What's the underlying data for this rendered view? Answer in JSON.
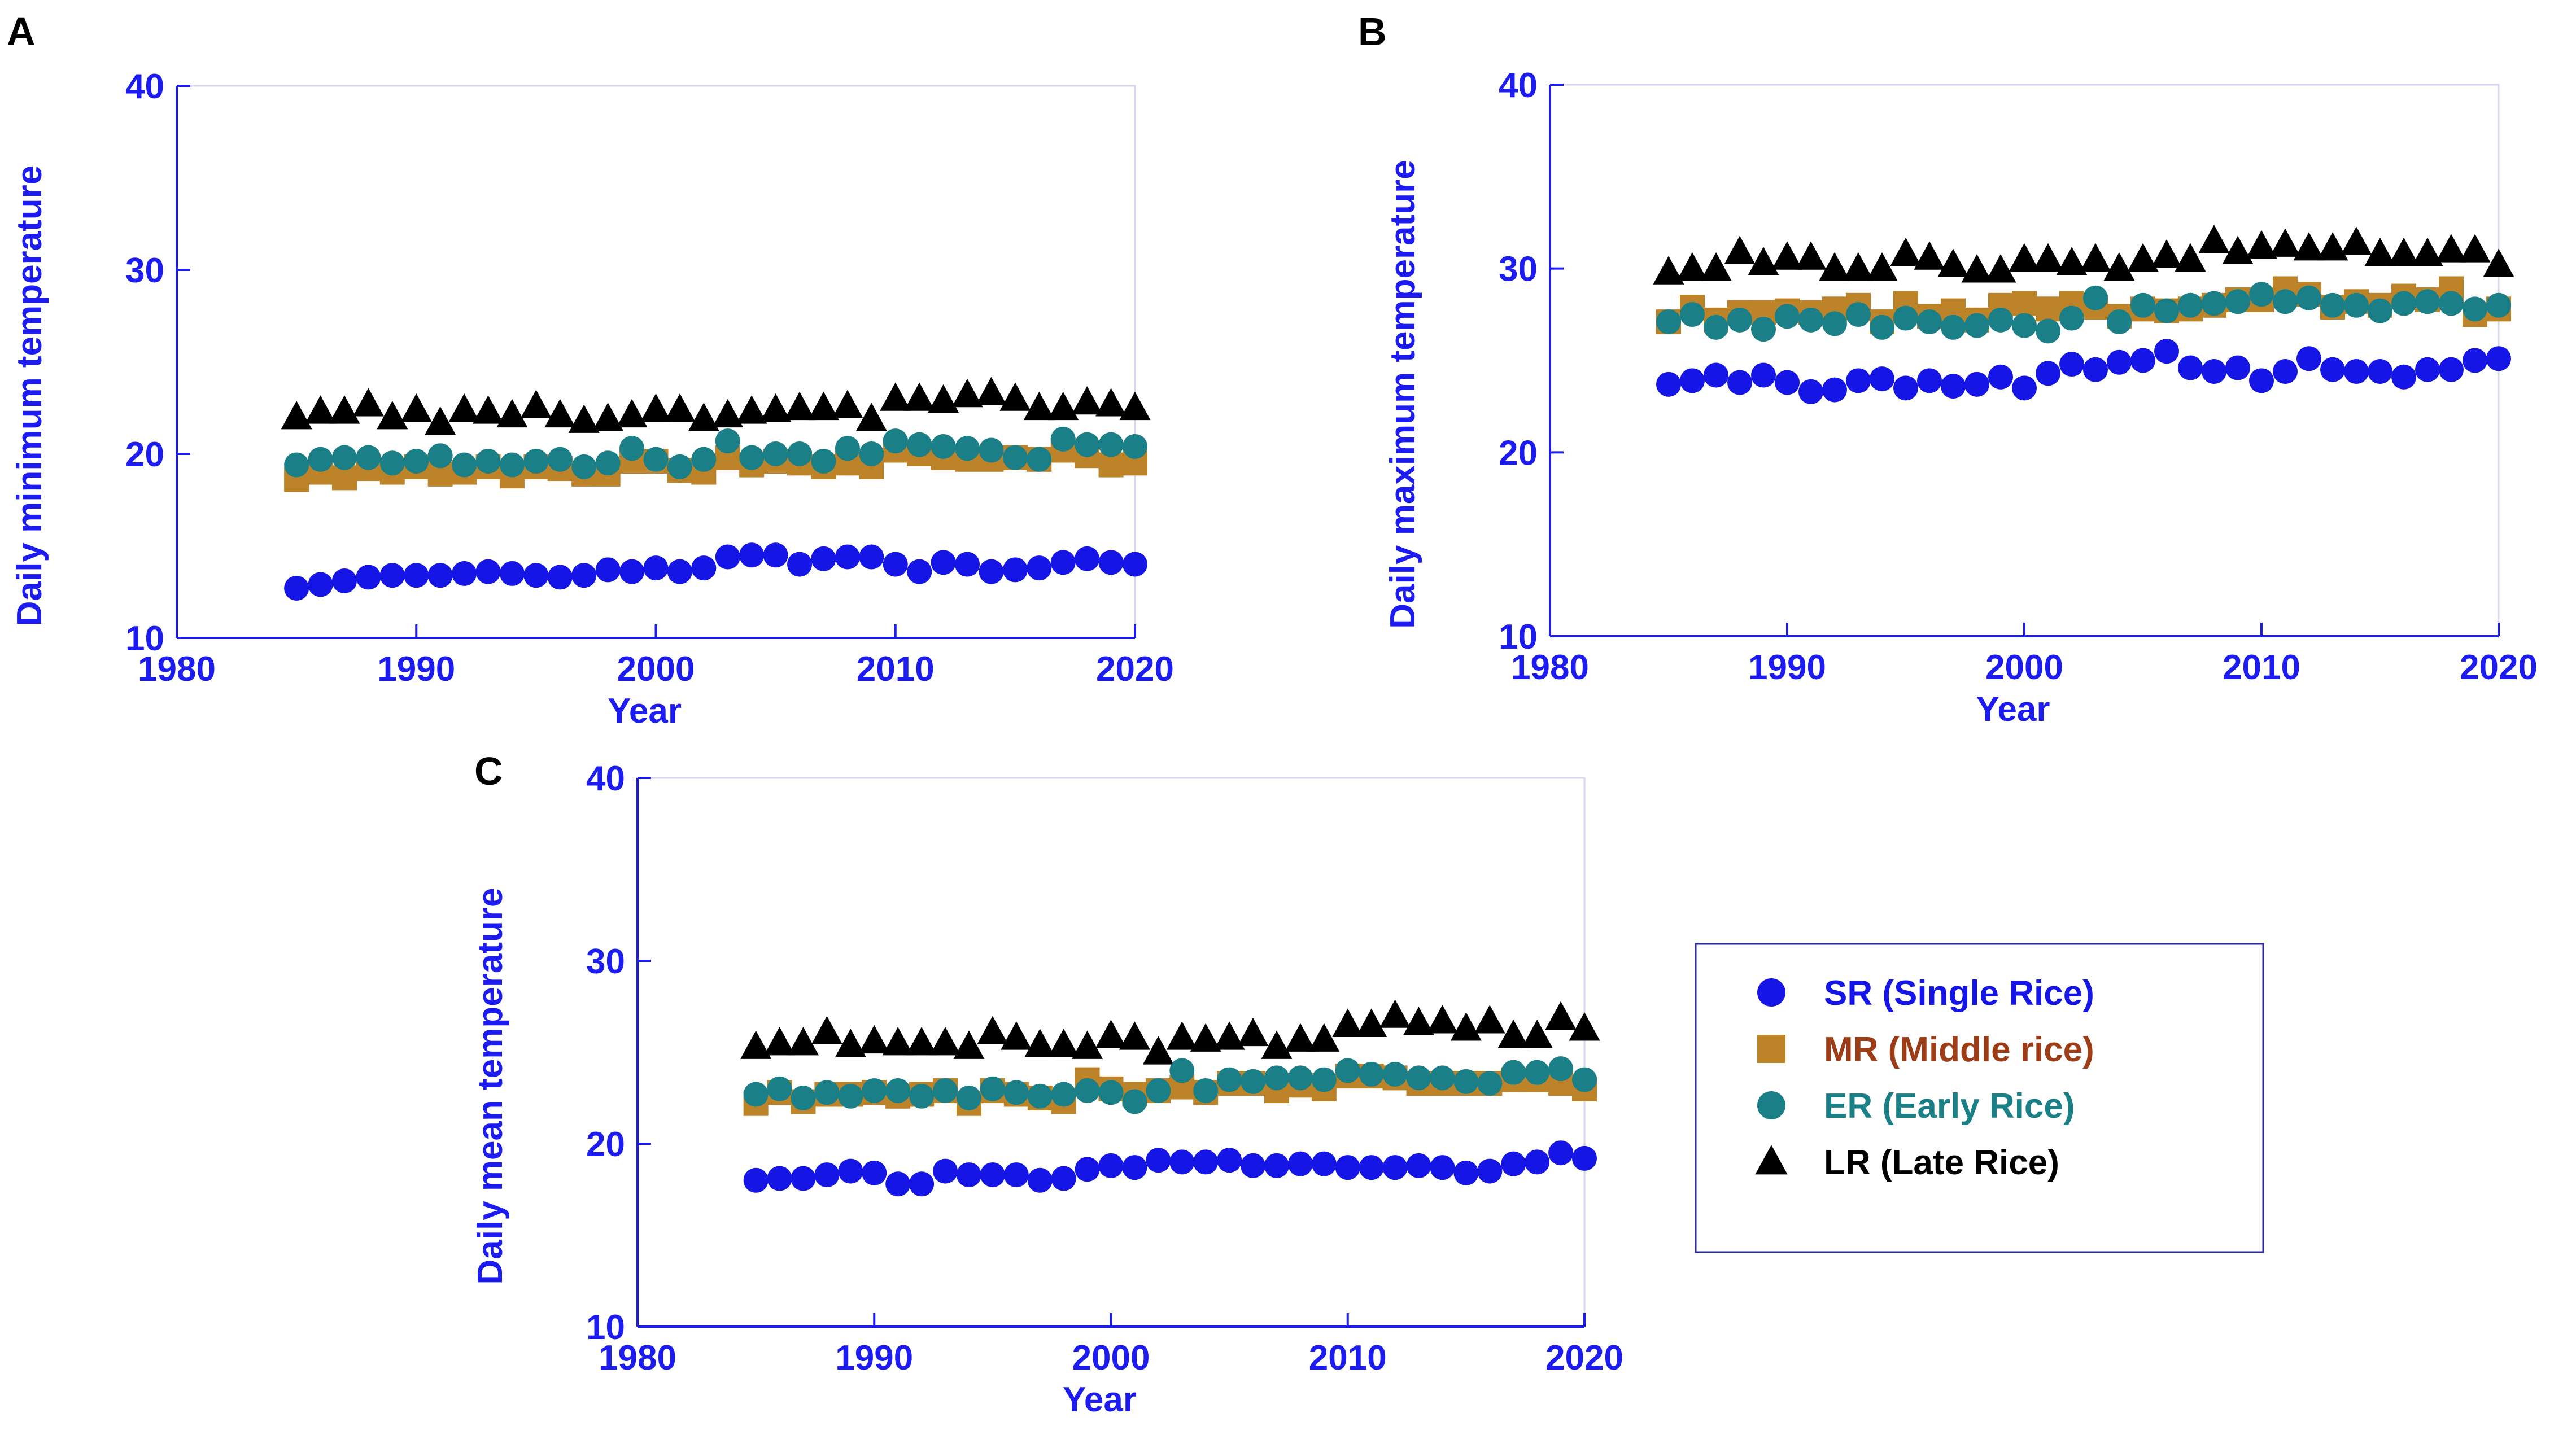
{
  "colors": {
    "axis": "#1c1cf0",
    "frame": "#d6d6ee",
    "SR": "#1515e6",
    "MR": "#bd8329",
    "ER": "#1a7f86",
    "LR": "#000000",
    "SR_label": "#1515e6",
    "MR_label": "#9c3d18",
    "ER_label": "#1a7f86",
    "LR_label": "#000000"
  },
  "legend": {
    "items": [
      {
        "key": "SR",
        "marker": "circle",
        "label": "SR (Single Rice)"
      },
      {
        "key": "MR",
        "marker": "square",
        "label": "MR (Middle rice)"
      },
      {
        "key": "ER",
        "marker": "circle",
        "label": "ER (Early Rice)"
      },
      {
        "key": "LR",
        "marker": "triangle",
        "label": "LR (Late Rice)"
      }
    ]
  },
  "chart_data": [
    {
      "type": "scatter",
      "panel": "A",
      "title": "",
      "xlabel": "Year",
      "ylabel": "Daily minimum temperature",
      "xlim": [
        1980,
        2020
      ],
      "ylim": [
        10,
        40
      ],
      "xticks": [
        1980,
        1990,
        2000,
        2010,
        2020
      ],
      "yticks": [
        10,
        20,
        30,
        40
      ],
      "x": [
        1985,
        1986,
        1987,
        1988,
        1989,
        1990,
        1991,
        1992,
        1993,
        1994,
        1995,
        1996,
        1997,
        1998,
        1999,
        2000,
        2001,
        2002,
        2003,
        2004,
        2005,
        2006,
        2007,
        2008,
        2009,
        2010,
        2011,
        2012,
        2013,
        2014,
        2015,
        2016,
        2017,
        2018,
        2019,
        2020
      ],
      "series": [
        {
          "name": "SR",
          "values": [
            12.7,
            12.9,
            13.1,
            13.3,
            13.4,
            13.4,
            13.4,
            13.5,
            13.6,
            13.5,
            13.4,
            13.3,
            13.4,
            13.7,
            13.6,
            13.8,
            13.6,
            13.8,
            14.4,
            14.5,
            14.5,
            14.0,
            14.3,
            14.4,
            14.4,
            14.0,
            13.6,
            14.1,
            14.0,
            13.6,
            13.7,
            13.8,
            14.1,
            14.3,
            14.1,
            14.0
          ]
        },
        {
          "name": "MR",
          "values": [
            18.6,
            19.0,
            18.7,
            19.2,
            19.0,
            19.3,
            18.9,
            19.0,
            19.3,
            18.8,
            19.3,
            19.2,
            18.9,
            18.9,
            19.6,
            19.6,
            19.1,
            19.0,
            19.8,
            19.4,
            19.6,
            19.5,
            19.3,
            19.5,
            19.3,
            20.2,
            20.0,
            19.8,
            19.7,
            19.7,
            19.8,
            19.7,
            20.2,
            19.9,
            19.4,
            19.5
          ]
        },
        {
          "name": "ER",
          "values": [
            19.4,
            19.7,
            19.8,
            19.8,
            19.5,
            19.6,
            19.9,
            19.4,
            19.6,
            19.4,
            19.6,
            19.7,
            19.3,
            19.5,
            20.3,
            19.7,
            19.3,
            19.7,
            20.7,
            19.8,
            20.0,
            20.0,
            19.6,
            20.3,
            20.0,
            20.7,
            20.5,
            20.4,
            20.3,
            20.2,
            19.8,
            19.7,
            20.8,
            20.5,
            20.5,
            20.4
          ]
        },
        {
          "name": "LR",
          "values": [
            22.0,
            22.3,
            22.3,
            22.7,
            22.0,
            22.4,
            21.7,
            22.4,
            22.3,
            22.1,
            22.6,
            22.1,
            21.8,
            21.9,
            22.1,
            22.4,
            22.4,
            21.9,
            22.1,
            22.3,
            22.4,
            22.5,
            22.5,
            22.6,
            21.9,
            23.0,
            23.0,
            22.9,
            23.2,
            23.3,
            23.0,
            22.5,
            22.5,
            22.8,
            22.7,
            22.5
          ]
        }
      ]
    },
    {
      "type": "scatter",
      "panel": "B",
      "title": "",
      "xlabel": "Year",
      "ylabel": "Daily maximum temperature",
      "xlim": [
        1980,
        2020
      ],
      "ylim": [
        10,
        40
      ],
      "xticks": [
        1980,
        1990,
        2000,
        2010,
        2020
      ],
      "yticks": [
        10,
        20,
        30,
        40
      ],
      "x": [
        1985,
        1986,
        1987,
        1988,
        1989,
        1990,
        1991,
        1992,
        1993,
        1994,
        1995,
        1996,
        1997,
        1998,
        1999,
        2000,
        2001,
        2002,
        2003,
        2004,
        2005,
        2006,
        2007,
        2008,
        2009,
        2010,
        2011,
        2012,
        2013,
        2014,
        2015,
        2016,
        2017,
        2018,
        2019,
        2020
      ],
      "series": [
        {
          "name": "SR",
          "values": [
            23.7,
            23.9,
            24.2,
            23.8,
            24.2,
            23.8,
            23.3,
            23.4,
            23.9,
            24.0,
            23.5,
            23.9,
            23.6,
            23.7,
            24.1,
            23.5,
            24.3,
            24.8,
            24.5,
            24.9,
            25.0,
            25.5,
            24.6,
            24.4,
            24.6,
            23.9,
            24.4,
            25.1,
            24.5,
            24.4,
            24.4,
            24.1,
            24.5,
            24.5,
            25.0,
            25.1
          ]
        },
        {
          "name": "MR",
          "values": [
            27.1,
            27.9,
            27.2,
            27.6,
            27.6,
            27.7,
            27.6,
            27.8,
            28.0,
            27.1,
            28.1,
            27.4,
            27.7,
            27.2,
            28.0,
            28.1,
            27.8,
            28.1,
            27.9,
            27.4,
            27.8,
            27.7,
            27.8,
            28.0,
            28.3,
            28.3,
            28.9,
            28.6,
            27.9,
            28.2,
            28.0,
            28.5,
            28.3,
            28.9,
            27.5,
            27.8
          ]
        },
        {
          "name": "ER",
          "values": [
            27.1,
            27.5,
            26.8,
            27.2,
            26.7,
            27.4,
            27.2,
            27.0,
            27.5,
            26.8,
            27.3,
            27.1,
            26.8,
            26.9,
            27.2,
            26.9,
            26.6,
            27.3,
            28.4,
            27.1,
            28.0,
            27.7,
            28.0,
            28.1,
            28.2,
            28.6,
            28.2,
            28.4,
            28.0,
            28.0,
            27.7,
            28.1,
            28.2,
            28.1,
            27.8,
            28.0
          ]
        },
        {
          "name": "LR",
          "values": [
            29.8,
            30.0,
            30.0,
            30.9,
            30.3,
            30.6,
            30.6,
            30.0,
            30.0,
            30.0,
            30.8,
            30.6,
            30.2,
            29.9,
            29.9,
            30.5,
            30.5,
            30.3,
            30.5,
            30.0,
            30.5,
            30.7,
            30.5,
            31.5,
            30.9,
            31.2,
            31.3,
            31.1,
            31.1,
            31.4,
            30.8,
            30.8,
            30.8,
            31.0,
            31.0,
            30.2
          ]
        }
      ]
    },
    {
      "type": "scatter",
      "panel": "C",
      "title": "",
      "xlabel": "Year",
      "ylabel": "Daily mean temperature",
      "xlim": [
        1980,
        2020
      ],
      "ylim": [
        10,
        40
      ],
      "xticks": [
        1980,
        1990,
        2000,
        2010,
        2020
      ],
      "yticks": [
        10,
        20,
        30,
        40
      ],
      "x": [
        1985,
        1986,
        1987,
        1988,
        1989,
        1990,
        1991,
        1992,
        1993,
        1994,
        1995,
        1996,
        1997,
        1998,
        1999,
        2000,
        2001,
        2002,
        2003,
        2004,
        2005,
        2006,
        2007,
        2008,
        2009,
        2010,
        2011,
        2012,
        2013,
        2014,
        2015,
        2016,
        2017,
        2018,
        2019,
        2020
      ],
      "series": [
        {
          "name": "SR",
          "values": [
            18.0,
            18.1,
            18.1,
            18.3,
            18.5,
            18.4,
            17.8,
            17.8,
            18.5,
            18.3,
            18.3,
            18.3,
            18.0,
            18.1,
            18.6,
            18.8,
            18.7,
            19.1,
            19.0,
            19.0,
            19.1,
            18.8,
            18.8,
            18.9,
            18.9,
            18.7,
            18.7,
            18.7,
            18.8,
            18.7,
            18.4,
            18.5,
            18.9,
            19.0,
            19.5,
            19.2
          ]
        },
        {
          "name": "MR",
          "values": [
            22.2,
            22.8,
            22.3,
            22.7,
            22.7,
            22.8,
            22.6,
            22.7,
            22.9,
            22.2,
            22.9,
            22.7,
            22.5,
            22.3,
            23.5,
            23.0,
            22.7,
            22.9,
            23.1,
            22.8,
            23.3,
            23.3,
            22.9,
            23.2,
            23.0,
            23.7,
            23.7,
            23.6,
            23.3,
            23.3,
            23.3,
            23.3,
            23.5,
            23.5,
            23.3,
            23.0
          ]
        },
        {
          "name": "ER",
          "values": [
            22.7,
            23.0,
            22.5,
            22.8,
            22.6,
            22.9,
            22.9,
            22.6,
            22.9,
            22.5,
            23.0,
            22.8,
            22.6,
            22.7,
            22.9,
            22.8,
            22.3,
            22.9,
            24.0,
            22.9,
            23.5,
            23.4,
            23.6,
            23.6,
            23.5,
            24.0,
            23.8,
            23.8,
            23.6,
            23.6,
            23.4,
            23.3,
            23.9,
            23.9,
            24.1,
            23.5
          ]
        },
        {
          "name": "LR",
          "values": [
            25.3,
            25.5,
            25.5,
            26.1,
            25.4,
            25.6,
            25.5,
            25.5,
            25.5,
            25.3,
            26.1,
            25.8,
            25.4,
            25.4,
            25.3,
            25.9,
            25.8,
            25.0,
            25.8,
            25.7,
            25.8,
            26.0,
            25.3,
            25.7,
            25.7,
            26.5,
            26.5,
            27.0,
            26.6,
            26.7,
            26.3,
            26.7,
            25.9,
            25.9,
            26.9,
            26.3
          ]
        }
      ]
    }
  ]
}
